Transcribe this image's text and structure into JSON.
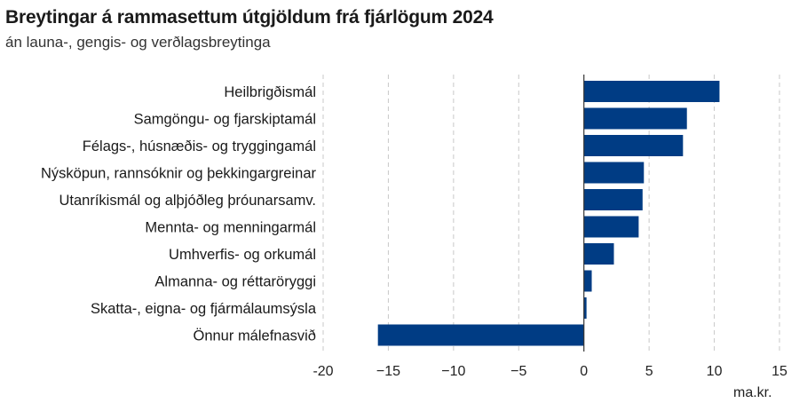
{
  "title": "Breytingar á rammasettum útgjöldum frá fjárlögum 2024",
  "subtitle": "án launa-, gengis- og verðlagsbreytinga",
  "unit_label": "ma.kr.",
  "colors": {
    "bar": "#003c84",
    "grid": "#c8c8c8",
    "zero_line": "#333333",
    "text": "#1a1a1a"
  },
  "chart_data": {
    "type": "bar",
    "orientation": "horizontal",
    "title": "Breytingar á rammasettum útgjöldum frá fjárlögum 2024",
    "subtitle": "án launa-, gengis- og verðlagsbreytinga",
    "xlabel": "ma.kr.",
    "ylabel": "",
    "categories": [
      "Heilbrigðismál",
      "Samgöngu- og fjarskiptamál",
      "Félags-, húsnæðis- og tryggingamál",
      "Nýsköpun, rannsóknir og þekkingargreinar",
      "Utanríkismál og alþjóðleg þróunarsamv.",
      "Mennta- og menningarmál",
      "Umhverfis- og orkumál",
      "Almanna- og réttaröryggi",
      "Skatta-, eigna- og fjármálaumsýsla",
      "Önnur málefnasvið"
    ],
    "values": [
      10.4,
      7.9,
      7.6,
      4.6,
      4.5,
      4.2,
      2.3,
      0.6,
      0.2,
      -15.8
    ],
    "xlim": [
      -20,
      15
    ],
    "xticks": [
      -20,
      -15,
      -10,
      -5,
      0,
      5,
      10,
      15
    ],
    "xtick_labels": [
      "-20",
      "−15",
      "−10",
      "−5",
      "0",
      "5",
      "10",
      "15"
    ],
    "grid": "vertical-dashed",
    "legend": "none"
  }
}
